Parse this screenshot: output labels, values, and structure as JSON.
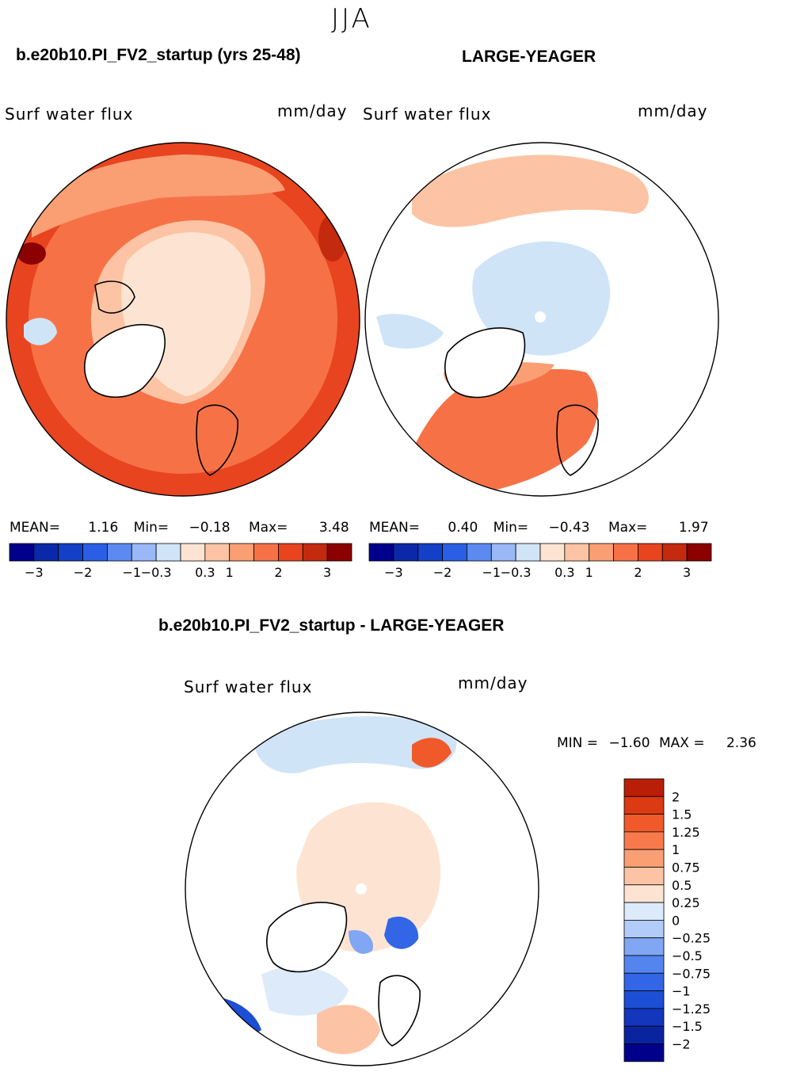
{
  "season": "JJA",
  "case_title": "b.e20b10.PI_FV2_startup (yrs 25-48)",
  "obs_title": "LARGE-YEAGER",
  "diff_title": "b.e20b10.PI_FV2_startup - LARGE-YEAGER",
  "colors": {
    "abs": [
      "#00008b",
      "#0b28a8",
      "#1440c8",
      "#2a5ee4",
      "#5c8af0",
      "#9ab8f8",
      "#d0e4f8",
      "#fde4d2",
      "#fcc4a4",
      "#fa9e74",
      "#f67246",
      "#e84420",
      "#c42a0e",
      "#8b0000"
    ],
    "diff": [
      "#00008b",
      "#0a24a0",
      "#1236bc",
      "#1c4ed6",
      "#3266e6",
      "#5484ee",
      "#80a6f4",
      "#b2ccfa",
      "#dceafa",
      "#fde4d2",
      "#fcc4a4",
      "#fa9e74",
      "#f87a4c",
      "#f05a2a",
      "#dc3a12",
      "#b81e08",
      "#8b0000"
    ]
  },
  "chart_data": [
    {
      "type": "heatmap",
      "title": "b.e20b10.PI_FV2_startup (yrs 25-48)",
      "variable": "Surf water flux",
      "units": "mm/day",
      "projection": "north polar stereographic",
      "stats": {
        "mean_label": "MEAN=",
        "mean": "1.16",
        "min_label": "Min=",
        "min": "−0.18",
        "max_label": "Max=",
        "max": "3.48"
      },
      "colorbar_ticks": [
        "−3",
        "−2",
        "−1",
        "−0.3",
        "0.3",
        "1",
        "2",
        "3"
      ]
    },
    {
      "type": "heatmap",
      "title": "LARGE-YEAGER",
      "variable": "Surf water flux",
      "units": "mm/day",
      "projection": "north polar stereographic",
      "stats": {
        "mean_label": "MEAN=",
        "mean": "0.40",
        "min_label": "Min=",
        "min": "−0.43",
        "max_label": "Max=",
        "max": "1.97"
      },
      "colorbar_ticks": [
        "−3",
        "−2",
        "−1",
        "−0.3",
        "0.3",
        "1",
        "2",
        "3"
      ]
    },
    {
      "type": "heatmap",
      "title": "b.e20b10.PI_FV2_startup - LARGE-YEAGER",
      "variable": "Surf water flux",
      "units": "mm/day",
      "projection": "north polar stereographic",
      "stats": {
        "min_label": "MIN =",
        "min": "−1.60",
        "max_label": "MAX =",
        "max": "2.36"
      },
      "colorbar_ticks": [
        "2",
        "1.5",
        "1.25",
        "1",
        "0.75",
        "0.5",
        "0.25",
        "0",
        "−0.25",
        "−0.5",
        "−0.75",
        "−1",
        "−1.25",
        "−1.5",
        "−2"
      ]
    }
  ]
}
